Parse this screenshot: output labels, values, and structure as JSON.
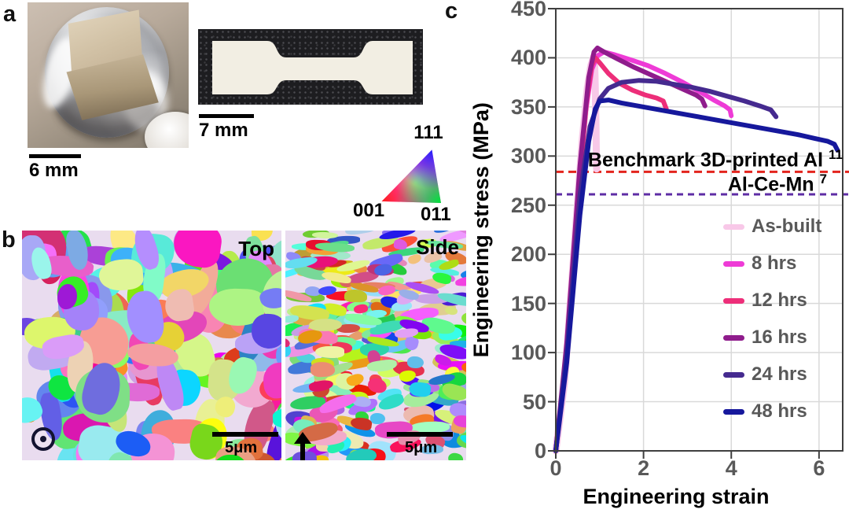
{
  "panel_a": {
    "label": "a",
    "scale_bar_cube": "6 mm",
    "scale_bar_dogbone": "7 mm"
  },
  "ipf_triangle": {
    "label_111": "111",
    "label_001": "001",
    "label_011": "011"
  },
  "panel_b": {
    "label": "b",
    "top_map_label": "Top",
    "side_map_label": "Side",
    "top_scale_bar": "5μm",
    "side_scale_bar": "5μm"
  },
  "panel_c": {
    "label": "c",
    "chart_data": {
      "type": "line",
      "title": "",
      "xlabel": "Engineering strain",
      "ylabel": "Engineering stress (MPa)",
      "xlim": [
        0,
        6.54
      ],
      "ylim": [
        0,
        450
      ],
      "x_ticks": [
        0,
        2,
        4,
        6
      ],
      "y_ticks": [
        0,
        50,
        100,
        150,
        200,
        250,
        300,
        350,
        400,
        450
      ],
      "grid": true,
      "grid_color": "#D9D9D9",
      "frame_color": "#3F3F3F",
      "tick_label_color": "#595959",
      "legend_position": "lower right",
      "series": [
        {
          "name": "As-built",
          "color": "#F8C8E8",
          "width": 9,
          "points": [
            [
              0,
              0
            ],
            [
              0.2,
              70
            ],
            [
              0.45,
              225
            ],
            [
              0.6,
              315
            ],
            [
              0.72,
              370
            ],
            [
              0.8,
              392
            ],
            [
              0.86,
              401
            ],
            [
              0.885,
              396
            ],
            [
              0.9,
              370
            ],
            [
              0.915,
              330
            ],
            [
              0.925,
              300
            ],
            [
              0.93,
              287
            ]
          ]
        },
        {
          "name": "8 hrs",
          "color": "#EE3BD6",
          "width": 6,
          "points": [
            [
              0,
              0
            ],
            [
              0.22,
              90
            ],
            [
              0.5,
              255
            ],
            [
              0.68,
              345
            ],
            [
              0.82,
              388
            ],
            [
              0.95,
              402
            ],
            [
              1.1,
              406
            ],
            [
              1.35,
              403
            ],
            [
              1.7,
              398
            ],
            [
              2.1,
              392
            ],
            [
              2.5,
              384
            ],
            [
              2.9,
              375
            ],
            [
              3.3,
              365
            ],
            [
              3.6,
              357
            ],
            [
              3.85,
              351
            ],
            [
              3.97,
              347
            ],
            [
              4.0,
              341
            ]
          ]
        },
        {
          "name": "12 hrs",
          "color": "#ED2E79",
          "width": 6,
          "points": [
            [
              0,
              0
            ],
            [
              0.25,
              105
            ],
            [
              0.52,
              265
            ],
            [
              0.7,
              355
            ],
            [
              0.82,
              392
            ],
            [
              0.9,
              400
            ],
            [
              1.0,
              395
            ],
            [
              1.2,
              384
            ],
            [
              1.45,
              374
            ],
            [
              1.75,
              367
            ],
            [
              2.05,
              362
            ],
            [
              2.3,
              359
            ],
            [
              2.45,
              356
            ],
            [
              2.52,
              348
            ]
          ]
        },
        {
          "name": "16 hrs",
          "color": "#8F1C8C",
          "width": 6,
          "points": [
            [
              0,
              0
            ],
            [
              0.25,
              110
            ],
            [
              0.55,
              290
            ],
            [
              0.75,
              380
            ],
            [
              0.87,
              406
            ],
            [
              0.95,
              410
            ],
            [
              1.1,
              406
            ],
            [
              1.4,
              399
            ],
            [
              1.8,
              390
            ],
            [
              2.2,
              382
            ],
            [
              2.6,
              374
            ],
            [
              2.95,
              367
            ],
            [
              3.2,
              362
            ],
            [
              3.33,
              358
            ],
            [
              3.4,
              351
            ]
          ]
        },
        {
          "name": "24 hrs",
          "color": "#452A8F",
          "width": 6,
          "points": [
            [
              0,
              0
            ],
            [
              0.25,
              100
            ],
            [
              0.55,
              260
            ],
            [
              0.78,
              330
            ],
            [
              1.0,
              358
            ],
            [
              1.2,
              369
            ],
            [
              1.5,
              375
            ],
            [
              1.9,
              377
            ],
            [
              2.3,
              376
            ],
            [
              2.7,
              373
            ],
            [
              3.1,
              370
            ],
            [
              3.5,
              366
            ],
            [
              3.9,
              361
            ],
            [
              4.3,
              356
            ],
            [
              4.65,
              351
            ],
            [
              4.9,
              347
            ],
            [
              5.02,
              340
            ]
          ]
        },
        {
          "name": "48 hrs",
          "color": "#16189C",
          "width": 6,
          "points": [
            [
              0,
              0
            ],
            [
              0.25,
              90
            ],
            [
              0.55,
              240
            ],
            [
              0.75,
              315
            ],
            [
              0.9,
              348
            ],
            [
              1.0,
              356
            ],
            [
              1.2,
              357
            ],
            [
              1.5,
              354
            ],
            [
              2.0,
              350
            ],
            [
              2.5,
              346
            ],
            [
              3.0,
              342
            ],
            [
              3.5,
              338
            ],
            [
              4.0,
              334
            ],
            [
              4.5,
              330
            ],
            [
              5.0,
              326
            ],
            [
              5.5,
              322
            ],
            [
              5.9,
              318
            ],
            [
              6.2,
              315
            ],
            [
              6.35,
              312
            ],
            [
              6.42,
              306
            ]
          ]
        }
      ],
      "reference_lines": [
        {
          "label": "Benchmark 3D-printed Al",
          "superscript": "11",
          "value": 284,
          "color": "#E3241D",
          "dash": "10 6"
        },
        {
          "label": "Al-Ce-Mn",
          "superscript": "7",
          "value": 261,
          "color": "#5E2CA5",
          "dash": "8 6"
        }
      ]
    }
  }
}
